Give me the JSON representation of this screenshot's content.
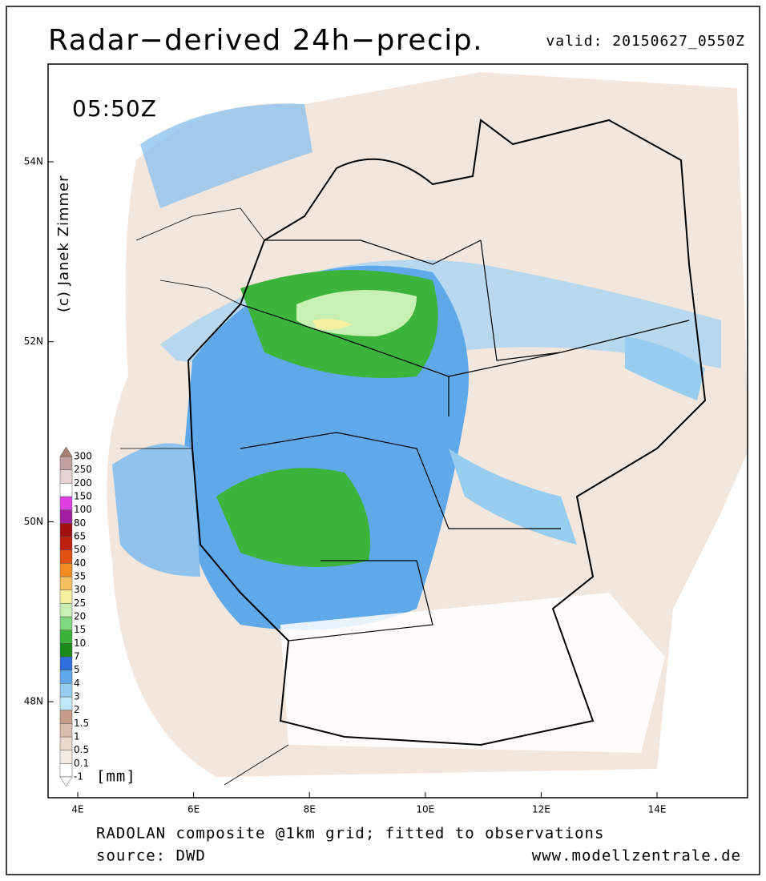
{
  "header": {
    "title": "Radar−derived 24h−precip.",
    "valid": "valid: 20150627_0550Z"
  },
  "map": {
    "time": "05:50Z",
    "credit": "(c) Janek Zimmer",
    "lon_labels": [
      "4E",
      "6E",
      "8E",
      "10E",
      "12E",
      "14E"
    ],
    "lat_labels": [
      "54N",
      "52N",
      "50N",
      "48N"
    ]
  },
  "colorbar": {
    "unit": "[mm]",
    "levels": [
      -1,
      0.1,
      0.5,
      1,
      1.5,
      2,
      3,
      4,
      5,
      7,
      10,
      15,
      20,
      25,
      30,
      35,
      40,
      50,
      65,
      80,
      100,
      150,
      200,
      250,
      300
    ],
    "colors": [
      "#ffffff",
      "#f5ebe4",
      "#ead8cc",
      "#d8bcaa",
      "#c49c88",
      "#bfe9f5",
      "#96cdf0",
      "#5fa8ea",
      "#2f6fdc",
      "#1a8a1a",
      "#3cb43c",
      "#7fd87f",
      "#c8f0b4",
      "#f5f0a0",
      "#f5c060",
      "#f08c20",
      "#e05010",
      "#c02010",
      "#a01010",
      "#a020a0",
      "#e040e0",
      "#ffffff",
      "#e8d4d4",
      "#c0a0a0"
    ],
    "over_color": "#a88070",
    "under_color": "#ffffff"
  },
  "footer": {
    "line1": "RADOLAN composite @1km grid; fitted to observations",
    "line2": "source: DWD",
    "url": "www.modellzentrale.de"
  }
}
